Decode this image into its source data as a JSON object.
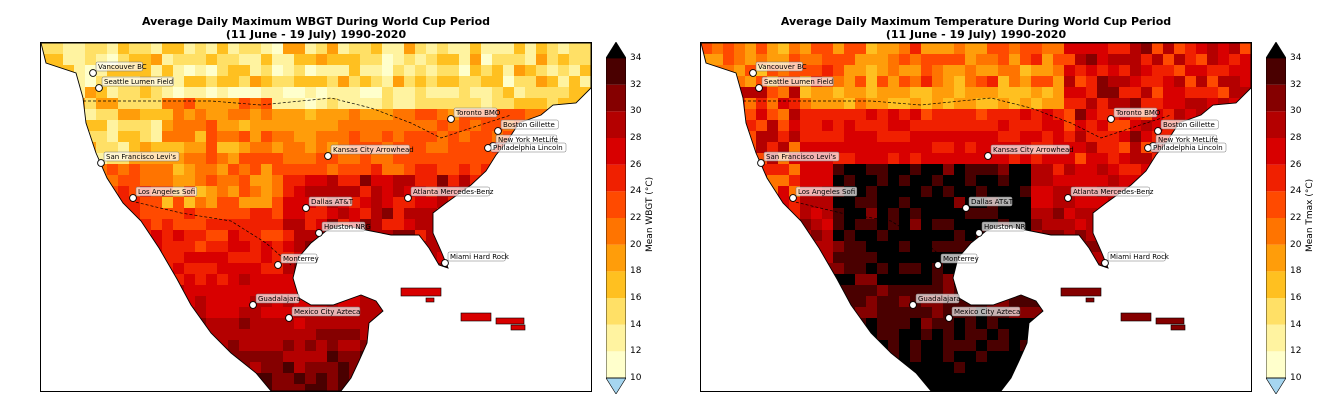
{
  "panels": [
    {
      "id": "wbgt",
      "title_line1": "Average Daily Maximum WBGT During World Cup Period",
      "title_line2": "(11 June - 19 July) 1990-2020",
      "colorbar_label": "Mean WBGT (°C)"
    },
    {
      "id": "tmax",
      "title_line1": "Average Daily Maximum Temperature During World Cup Period",
      "title_line2": "(11 June - 19 July) 1990-2020",
      "colorbar_label": "Mean Tmax (°C)"
    }
  ],
  "colorbar": {
    "ticks": [
      10,
      12,
      14,
      16,
      18,
      20,
      22,
      24,
      26,
      28,
      30,
      32,
      34
    ],
    "colors": [
      "#ffffcc",
      "#fff3a0",
      "#ffe066",
      "#ffc020",
      "#ff9d0a",
      "#ff7400",
      "#ff4a00",
      "#f02000",
      "#d80000",
      "#b40000",
      "#850000",
      "#4a0000"
    ],
    "under_color": "#a6d6f0",
    "over_color": "#000000"
  },
  "cities": [
    {
      "name": "Vancouver BC"
    },
    {
      "name": "Seattle Lumen Field"
    },
    {
      "name": "San Francisco Levi's"
    },
    {
      "name": "Los Angeles Sofi"
    },
    {
      "name": "Kansas City Arrowhead"
    },
    {
      "name": "Dallas AT&T"
    },
    {
      "name": "Houston NRG"
    },
    {
      "name": "Atlanta Mercedes-Benz"
    },
    {
      "name": "Miami Hard Rock"
    },
    {
      "name": "Toronto BMO"
    },
    {
      "name": "Boston Gillette"
    },
    {
      "name": "New York MetLife"
    },
    {
      "name": "Philadelphia Lincoln"
    },
    {
      "name": "Monterrey"
    },
    {
      "name": "Guadalajara"
    },
    {
      "name": "Mexico City Azteca"
    }
  ]
}
